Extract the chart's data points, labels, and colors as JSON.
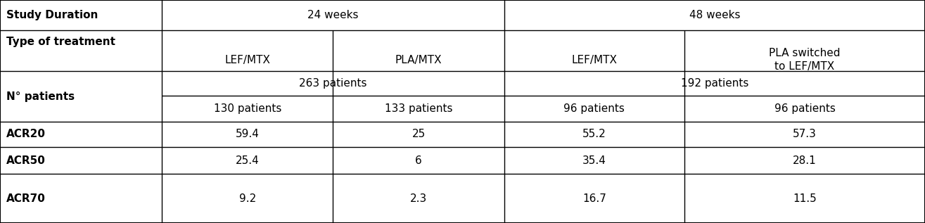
{
  "bg_color": "#ffffff",
  "text_color": "#000000",
  "line_color": "#000000",
  "font_family": "Arial",
  "acr20": [
    "ACR20",
    "59.4",
    "25",
    "55.2",
    "57.3"
  ],
  "acr50": [
    "ACR50",
    "25.4",
    "6",
    "35.4",
    "28.1"
  ],
  "acr70": [
    "ACR70",
    "9.2",
    "2.3",
    "16.7",
    "11.5"
  ]
}
